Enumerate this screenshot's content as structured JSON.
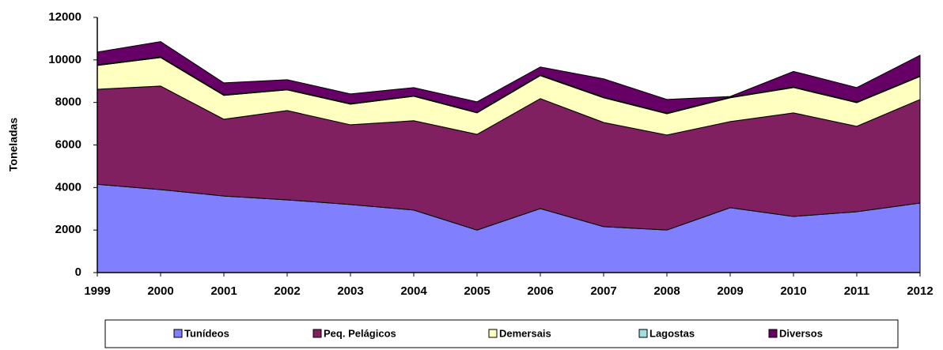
{
  "chart_data": {
    "type": "stacked_area",
    "y_label": "Toneladas",
    "categories": [
      "1999",
      "2000",
      "2001",
      "2002",
      "2003",
      "2004",
      "2005",
      "2006",
      "2007",
      "2008",
      "2009",
      "2010",
      "2011",
      "2012"
    ],
    "series": [
      {
        "name": "Tunídeos",
        "color": "#8080ff",
        "values": [
          4150,
          3900,
          3600,
          3420,
          3200,
          2940,
          2000,
          3010,
          2160,
          2000,
          3050,
          2640,
          2860,
          3270
        ]
      },
      {
        "name": "Peq. Pelágicos",
        "color": "#802060",
        "values": [
          4470,
          4870,
          3610,
          4200,
          3750,
          4200,
          4500,
          5170,
          4900,
          4470,
          4050,
          4870,
          4020,
          4870
        ]
      },
      {
        "name": "Demersais",
        "color": "#ffffc0",
        "values": [
          1120,
          1340,
          1120,
          970,
          970,
          1150,
          1010,
          1080,
          1160,
          1000,
          1120,
          1190,
          1110,
          1080
        ]
      },
      {
        "name": "Lagostas",
        "color": "#a0e0e0",
        "values": [
          30,
          30,
          30,
          30,
          30,
          30,
          30,
          30,
          30,
          30,
          30,
          30,
          30,
          30
        ]
      },
      {
        "name": "Diversos",
        "color": "#660066",
        "values": [
          600,
          720,
          560,
          450,
          450,
          380,
          490,
          380,
          860,
          640,
          30,
          730,
          680,
          970
        ]
      }
    ],
    "ylim": [
      0,
      12000
    ],
    "yticks": [
      0,
      2000,
      4000,
      6000,
      8000,
      10000,
      12000
    ],
    "legend": "bottom"
  }
}
